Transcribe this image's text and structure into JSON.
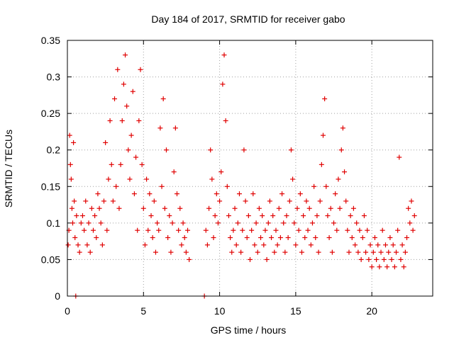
{
  "chart_data": {
    "type": "scatter",
    "title": "Day 184 of 2017, SRMTID for receiver gabo",
    "xlabel": "GPS time / hours",
    "ylabel": "SRMTID / TECUs",
    "xlim": [
      0,
      24
    ],
    "ylim": [
      0,
      0.35
    ],
    "xticks": [
      0,
      5,
      10,
      15,
      20
    ],
    "yticks": [
      0,
      0.05,
      0.1,
      0.15,
      0.2,
      0.25,
      0.3,
      0.35
    ],
    "grid": true,
    "marker": "plus",
    "color": "#e00000",
    "series": [
      {
        "name": "SRMTID",
        "points": [
          [
            0.05,
            0.07
          ],
          [
            0.1,
            0.09
          ],
          [
            0.15,
            0.22
          ],
          [
            0.2,
            0.18
          ],
          [
            0.25,
            0.16
          ],
          [
            0.3,
            0.12
          ],
          [
            0.35,
            0.1
          ],
          [
            0.4,
            0.21
          ],
          [
            0.45,
            0.13
          ],
          [
            0.5,
            0.08
          ],
          [
            0.6,
            0.11
          ],
          [
            0.7,
            0.07
          ],
          [
            0.8,
            0.06
          ],
          [
            0.9,
            0.1
          ],
          [
            1.0,
            0.11
          ],
          [
            1.1,
            0.09
          ],
          [
            1.2,
            0.13
          ],
          [
            1.3,
            0.07
          ],
          [
            1.4,
            0.1
          ],
          [
            1.5,
            0.06
          ],
          [
            1.6,
            0.12
          ],
          [
            1.7,
            0.09
          ],
          [
            1.8,
            0.11
          ],
          [
            1.9,
            0.08
          ],
          [
            2.0,
            0.14
          ],
          [
            2.1,
            0.12
          ],
          [
            2.2,
            0.1
          ],
          [
            2.3,
            0.07
          ],
          [
            2.4,
            0.13
          ],
          [
            2.5,
            0.21
          ],
          [
            2.6,
            0.09
          ],
          [
            2.7,
            0.16
          ],
          [
            2.8,
            0.24
          ],
          [
            2.9,
            0.18
          ],
          [
            3.0,
            0.13
          ],
          [
            3.1,
            0.27
          ],
          [
            3.2,
            0.15
          ],
          [
            3.3,
            0.31
          ],
          [
            3.4,
            0.12
          ],
          [
            3.5,
            0.18
          ],
          [
            3.6,
            0.24
          ],
          [
            3.7,
            0.29
          ],
          [
            3.8,
            0.33
          ],
          [
            3.9,
            0.26
          ],
          [
            4.0,
            0.2
          ],
          [
            4.1,
            0.16
          ],
          [
            4.2,
            0.22
          ],
          [
            4.3,
            0.28
          ],
          [
            4.4,
            0.14
          ],
          [
            4.5,
            0.19
          ],
          [
            4.6,
            0.09
          ],
          [
            4.7,
            0.24
          ],
          [
            4.8,
            0.31
          ],
          [
            4.9,
            0.18
          ],
          [
            5.0,
            0.12
          ],
          [
            5.1,
            0.07
          ],
          [
            5.2,
            0.16
          ],
          [
            5.3,
            0.09
          ],
          [
            5.4,
            0.14
          ],
          [
            5.5,
            0.11
          ],
          [
            5.6,
            0.08
          ],
          [
            5.7,
            0.13
          ],
          [
            5.8,
            0.06
          ],
          [
            5.9,
            0.1
          ],
          [
            6.0,
            0.09
          ],
          [
            6.1,
            0.23
          ],
          [
            6.2,
            0.15
          ],
          [
            6.3,
            0.27
          ],
          [
            6.4,
            0.12
          ],
          [
            6.5,
            0.2
          ],
          [
            6.6,
            0.08
          ],
          [
            6.7,
            0.11
          ],
          [
            6.8,
            0.06
          ],
          [
            6.9,
            0.1
          ],
          [
            7.0,
            0.17
          ],
          [
            7.1,
            0.23
          ],
          [
            7.2,
            0.14
          ],
          [
            7.3,
            0.09
          ],
          [
            7.4,
            0.12
          ],
          [
            7.5,
            0.07
          ],
          [
            7.6,
            0.1
          ],
          [
            7.7,
            0.08
          ],
          [
            7.8,
            0.06
          ],
          [
            7.9,
            0.09
          ],
          [
            8.0,
            0.05
          ],
          [
            9.1,
            0.09
          ],
          [
            9.2,
            0.07
          ],
          [
            9.3,
            0.12
          ],
          [
            9.4,
            0.2
          ],
          [
            9.5,
            0.16
          ],
          [
            9.6,
            0.08
          ],
          [
            9.7,
            0.11
          ],
          [
            9.8,
            0.14
          ],
          [
            9.9,
            0.1
          ],
          [
            10.0,
            0.13
          ],
          [
            10.1,
            0.17
          ],
          [
            10.2,
            0.29
          ],
          [
            10.3,
            0.33
          ],
          [
            10.4,
            0.24
          ],
          [
            10.5,
            0.15
          ],
          [
            10.6,
            0.11
          ],
          [
            10.7,
            0.08
          ],
          [
            10.8,
            0.06
          ],
          [
            10.9,
            0.09
          ],
          [
            11.0,
            0.12
          ],
          [
            11.1,
            0.07
          ],
          [
            11.2,
            0.1
          ],
          [
            11.3,
            0.14
          ],
          [
            11.4,
            0.06
          ],
          [
            11.5,
            0.09
          ],
          [
            11.6,
            0.2
          ],
          [
            11.7,
            0.13
          ],
          [
            11.8,
            0.08
          ],
          [
            11.9,
            0.11
          ],
          [
            12.0,
            0.05
          ],
          [
            12.1,
            0.09
          ],
          [
            12.2,
            0.14
          ],
          [
            12.3,
            0.07
          ],
          [
            12.4,
            0.1
          ],
          [
            12.5,
            0.06
          ],
          [
            12.6,
            0.12
          ],
          [
            12.7,
            0.08
          ],
          [
            12.8,
            0.11
          ],
          [
            12.9,
            0.07
          ],
          [
            13.0,
            0.09
          ],
          [
            13.1,
            0.05
          ],
          [
            13.2,
            0.1
          ],
          [
            13.3,
            0.13
          ],
          [
            13.4,
            0.08
          ],
          [
            13.5,
            0.11
          ],
          [
            13.6,
            0.06
          ],
          [
            13.7,
            0.09
          ],
          [
            13.8,
            0.07
          ],
          [
            13.9,
            0.12
          ],
          [
            14.0,
            0.08
          ],
          [
            14.1,
            0.14
          ],
          [
            14.2,
            0.1
          ],
          [
            14.3,
            0.06
          ],
          [
            14.4,
            0.11
          ],
          [
            14.5,
            0.08
          ],
          [
            14.6,
            0.13
          ],
          [
            14.7,
            0.2
          ],
          [
            14.8,
            0.16
          ],
          [
            14.9,
            0.1
          ],
          [
            15.0,
            0.07
          ],
          [
            15.1,
            0.12
          ],
          [
            15.2,
            0.09
          ],
          [
            15.3,
            0.14
          ],
          [
            15.4,
            0.06
          ],
          [
            15.5,
            0.11
          ],
          [
            15.6,
            0.08
          ],
          [
            15.7,
            0.13
          ],
          [
            15.8,
            0.09
          ],
          [
            15.9,
            0.12
          ],
          [
            16.0,
            0.07
          ],
          [
            16.1,
            0.1
          ],
          [
            16.2,
            0.15
          ],
          [
            16.3,
            0.08
          ],
          [
            16.4,
            0.11
          ],
          [
            16.5,
            0.06
          ],
          [
            16.6,
            0.13
          ],
          [
            16.7,
            0.18
          ],
          [
            16.8,
            0.22
          ],
          [
            16.9,
            0.27
          ],
          [
            17.0,
            0.15
          ],
          [
            17.1,
            0.11
          ],
          [
            17.2,
            0.08
          ],
          [
            17.3,
            0.12
          ],
          [
            17.4,
            0.06
          ],
          [
            17.5,
            0.1
          ],
          [
            17.6,
            0.14
          ],
          [
            17.7,
            0.09
          ],
          [
            17.8,
            0.16
          ],
          [
            17.9,
            0.12
          ],
          [
            18.0,
            0.2
          ],
          [
            18.1,
            0.23
          ],
          [
            18.2,
            0.17
          ],
          [
            18.3,
            0.13
          ],
          [
            18.4,
            0.09
          ],
          [
            18.5,
            0.06
          ],
          [
            18.6,
            0.11
          ],
          [
            18.7,
            0.08
          ],
          [
            18.8,
            0.12
          ],
          [
            18.9,
            0.07
          ],
          [
            19.0,
            0.1
          ],
          [
            19.1,
            0.06
          ],
          [
            19.2,
            0.09
          ],
          [
            19.3,
            0.05
          ],
          [
            19.4,
            0.08
          ],
          [
            19.5,
            0.11
          ],
          [
            19.6,
            0.06
          ],
          [
            19.7,
            0.09
          ],
          [
            19.8,
            0.05
          ],
          [
            19.9,
            0.07
          ],
          [
            20.0,
            0.04
          ],
          [
            20.1,
            0.06
          ],
          [
            20.2,
            0.08
          ],
          [
            20.3,
            0.05
          ],
          [
            20.4,
            0.07
          ],
          [
            20.5,
            0.04
          ],
          [
            20.6,
            0.06
          ],
          [
            20.7,
            0.09
          ],
          [
            20.8,
            0.05
          ],
          [
            20.9,
            0.07
          ],
          [
            21.0,
            0.04
          ],
          [
            21.1,
            0.06
          ],
          [
            21.2,
            0.08
          ],
          [
            21.3,
            0.05
          ],
          [
            21.4,
            0.07
          ],
          [
            21.5,
            0.04
          ],
          [
            21.6,
            0.06
          ],
          [
            21.7,
            0.09
          ],
          [
            21.8,
            0.19
          ],
          [
            21.9,
            0.05
          ],
          [
            22.0,
            0.07
          ],
          [
            22.1,
            0.04
          ],
          [
            22.2,
            0.06
          ],
          [
            22.3,
            0.08
          ],
          [
            22.4,
            0.12
          ],
          [
            22.5,
            0.1
          ],
          [
            22.6,
            0.13
          ],
          [
            22.7,
            0.09
          ],
          [
            22.8,
            0.11
          ],
          [
            0.55,
            0.0
          ],
          [
            9.0,
            0.0
          ]
        ]
      }
    ]
  }
}
